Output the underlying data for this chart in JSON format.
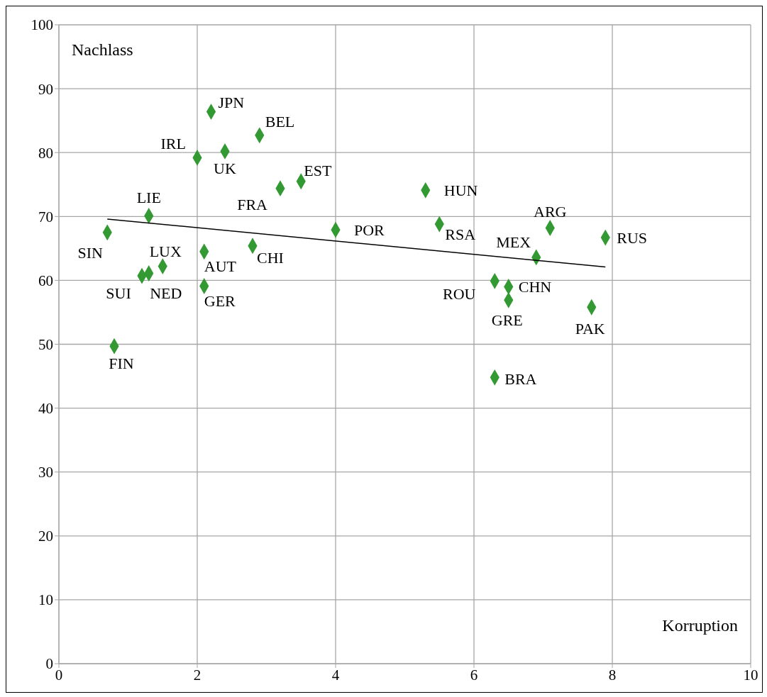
{
  "chart_data": {
    "type": "scatter",
    "xlabel": "Korruption",
    "ylabel": "Nachlass",
    "xlim": [
      0,
      10
    ],
    "xticks": [
      0,
      2,
      4,
      6,
      8,
      10
    ],
    "ylim": [
      0,
      100
    ],
    "yticks": [
      0,
      10,
      20,
      30,
      40,
      50,
      60,
      70,
      80,
      90,
      100
    ],
    "grid": true,
    "legend": false,
    "series": [
      {
        "type": "scatter",
        "marker": "diamond",
        "color": "#339933",
        "x": [
          2.2,
          2.9,
          2.0,
          2.4,
          3.5,
          3.2,
          5.3,
          1.3,
          4.0,
          5.5,
          7.1,
          7.9,
          0.7,
          6.9,
          2.1,
          2.8,
          1.5,
          1.3,
          1.2,
          2.1,
          6.3,
          6.5,
          6.5,
          7.7,
          0.8,
          6.3
        ],
        "values": [
          86.4,
          82.7,
          79.2,
          80.2,
          75.5,
          74.4,
          74.1,
          70.1,
          67.9,
          68.8,
          68.2,
          66.7,
          67.5,
          63.6,
          64.5,
          65.4,
          62.2,
          61.1,
          60.7,
          59.1,
          59.9,
          59.0,
          56.9,
          55.8,
          49.7,
          44.8
        ]
      },
      {
        "type": "line",
        "marker": "none",
        "color": "#000000",
        "x": [
          0.7,
          7.9
        ],
        "values": [
          69.6,
          62.1
        ]
      }
    ],
    "annotations": [
      {
        "text": "JPN",
        "x": 2.2,
        "y": 86.4
      },
      {
        "text": "BEL",
        "x": 2.9,
        "y": 82.7
      },
      {
        "text": "IRL",
        "x": 2.0,
        "y": 79.2
      },
      {
        "text": "UK",
        "x": 2.4,
        "y": 80.2
      },
      {
        "text": "EST",
        "x": 3.5,
        "y": 75.5
      },
      {
        "text": "FRA",
        "x": 3.2,
        "y": 74.4
      },
      {
        "text": "HUN",
        "x": 5.3,
        "y": 74.1
      },
      {
        "text": "LIE",
        "x": 1.3,
        "y": 70.1
      },
      {
        "text": "POR",
        "x": 4.0,
        "y": 67.9
      },
      {
        "text": "RSA",
        "x": 5.5,
        "y": 68.8
      },
      {
        "text": "ARG",
        "x": 7.1,
        "y": 68.2
      },
      {
        "text": "RUS",
        "x": 7.9,
        "y": 66.7
      },
      {
        "text": "SIN",
        "x": 0.7,
        "y": 67.5
      },
      {
        "text": "MEX",
        "x": 6.9,
        "y": 63.6
      },
      {
        "text": "AUT",
        "x": 2.1,
        "y": 64.5
      },
      {
        "text": "CHI",
        "x": 2.8,
        "y": 65.4
      },
      {
        "text": "LUX",
        "x": 1.5,
        "y": 62.2
      },
      {
        "text": "NED",
        "x": 1.3,
        "y": 61.1
      },
      {
        "text": "SUI",
        "x": 1.2,
        "y": 60.7
      },
      {
        "text": "GER",
        "x": 2.1,
        "y": 59.1
      },
      {
        "text": "ROU",
        "x": 6.3,
        "y": 59.9
      },
      {
        "text": "CHN",
        "x": 6.5,
        "y": 59.0
      },
      {
        "text": "GRE",
        "x": 6.5,
        "y": 56.9
      },
      {
        "text": "PAK",
        "x": 7.7,
        "y": 55.8
      },
      {
        "text": "FIN",
        "x": 0.8,
        "y": 49.7
      },
      {
        "text": "BRA",
        "x": 6.3,
        "y": 44.8
      }
    ]
  }
}
